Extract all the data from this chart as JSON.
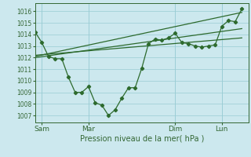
{
  "xlabel": "Pression niveau de la mer( hPa )",
  "background_color": "#cce8ee",
  "grid_color": "#99ccd4",
  "line_color": "#2d6a2d",
  "spine_color": "#336633",
  "yticks": [
    1007,
    1008,
    1009,
    1010,
    1011,
    1012,
    1013,
    1014,
    1015,
    1016
  ],
  "ylim": [
    1006.4,
    1016.7
  ],
  "xlim": [
    0,
    32
  ],
  "xtick_positions": [
    1,
    8,
    21,
    28
  ],
  "xtick_labels": [
    "Sam",
    "Mar",
    "Dim",
    "Lun"
  ],
  "series1_x": [
    0,
    1,
    2,
    3,
    4,
    5,
    6,
    7,
    8,
    9,
    10,
    11,
    12,
    13,
    14,
    15,
    16,
    17,
    18,
    19,
    20,
    21,
    22,
    23,
    24,
    25,
    26,
    27,
    28,
    29,
    30,
    31
  ],
  "series1_y": [
    1014.2,
    1013.3,
    1012.1,
    1011.9,
    1011.9,
    1010.3,
    1009.0,
    1009.0,
    1009.5,
    1008.1,
    1007.9,
    1007.0,
    1007.5,
    1008.5,
    1009.4,
    1009.4,
    1011.1,
    1013.2,
    1013.6,
    1013.5,
    1013.7,
    1014.1,
    1013.3,
    1013.2,
    1013.0,
    1012.9,
    1013.0,
    1013.1,
    1014.7,
    1015.2,
    1015.1,
    1016.2
  ],
  "trend1_x": [
    0,
    31
  ],
  "trend1_y": [
    1012.1,
    1015.9
  ],
  "trend2_x": [
    0,
    31
  ],
  "trend2_y": [
    1012.0,
    1014.5
  ],
  "trend3_x": [
    0,
    31
  ],
  "trend3_y": [
    1012.2,
    1013.7
  ],
  "vline_positions": [
    1,
    8,
    21,
    28
  ]
}
